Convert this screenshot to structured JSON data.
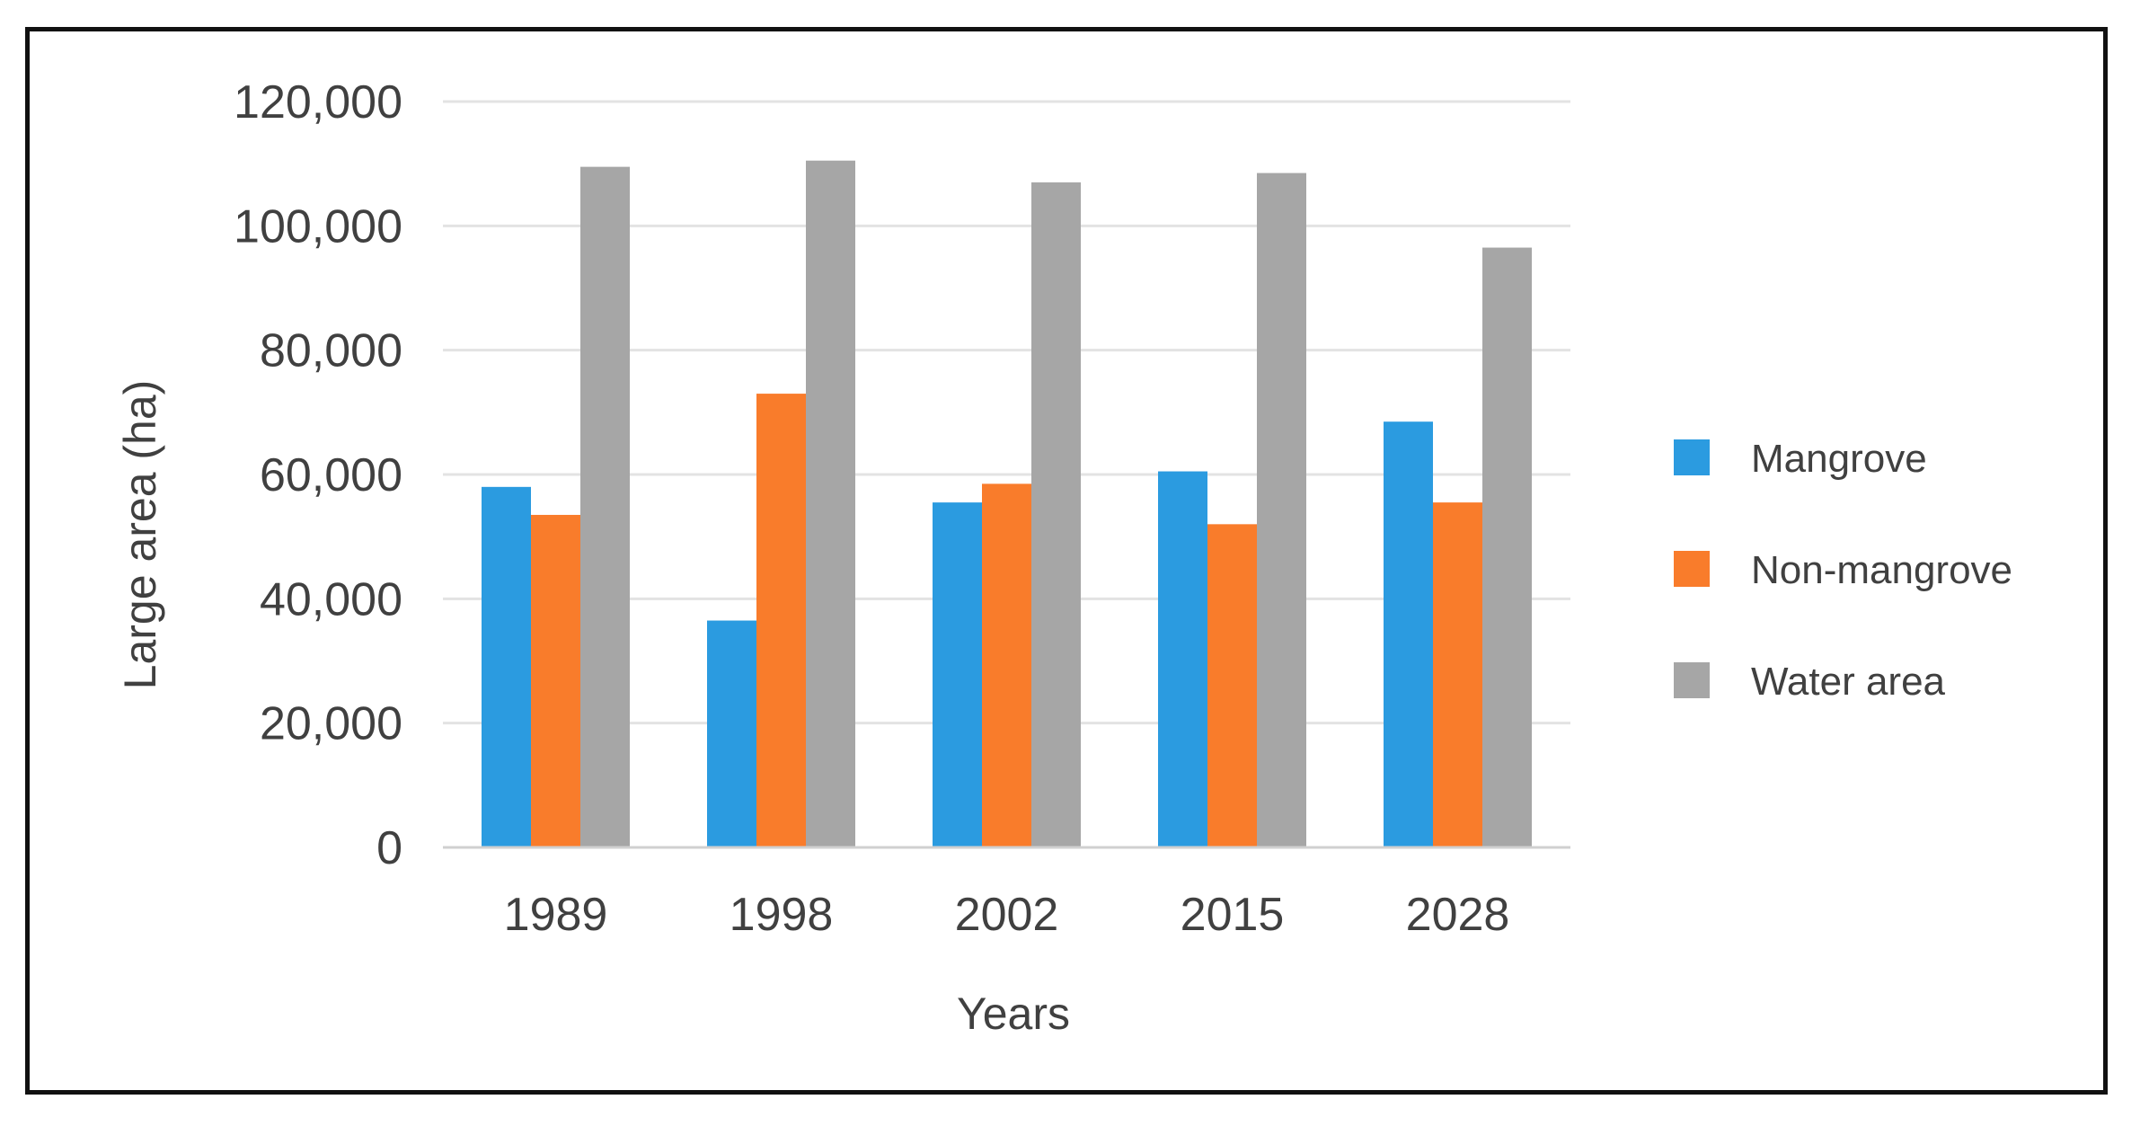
{
  "chart_data": {
    "type": "bar",
    "title": "",
    "xlabel": "Years",
    "ylabel": "Large  area (ha)",
    "categories": [
      "1989",
      "1998",
      "2002",
      "2015",
      "2028"
    ],
    "series": [
      {
        "name": "Mangrove",
        "color": "#2b9be0",
        "values": [
          58000,
          36500,
          55500,
          60500,
          68500
        ]
      },
      {
        "name": "Non-mangrove",
        "color": "#f97c2b",
        "values": [
          53500,
          73000,
          58500,
          52000,
          55500
        ]
      },
      {
        "name": "Water area",
        "color": "#a6a6a6",
        "values": [
          109500,
          110500,
          107000,
          108500,
          96500
        ]
      }
    ],
    "ylim": [
      0,
      120000
    ],
    "yticks": [
      0,
      20000,
      40000,
      60000,
      80000,
      100000,
      120000
    ],
    "ytick_labels": [
      "0",
      "20,000",
      "40,000",
      "60,000",
      "80,000",
      "100,000",
      "120,000"
    ],
    "grid": true,
    "legend_position": "right"
  }
}
